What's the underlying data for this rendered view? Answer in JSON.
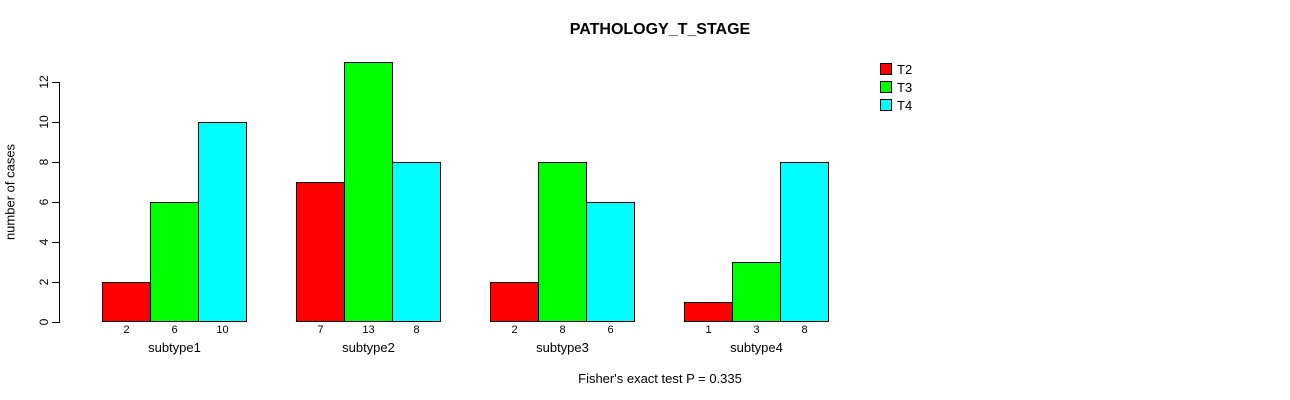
{
  "title": "PATHOLOGY_T_STAGE",
  "footer": "Fisher's exact test P = 0.335",
  "chart_data": {
    "type": "bar",
    "title": "PATHOLOGY_T_STAGE",
    "categories": [
      "subtype1",
      "subtype2",
      "subtype3",
      "subtype4"
    ],
    "series": [
      {
        "name": "T2",
        "color": "#ff0000",
        "values": [
          2,
          7,
          2,
          1
        ]
      },
      {
        "name": "T3",
        "color": "#00ff00",
        "values": [
          6,
          13,
          8,
          3
        ]
      },
      {
        "name": "T4",
        "color": "#00ffff",
        "values": [
          10,
          8,
          6,
          8
        ]
      }
    ],
    "xlabel": "",
    "ylabel": "number of cases",
    "ylim": [
      0,
      13
    ],
    "yticks": [
      0,
      2,
      4,
      6,
      8,
      10,
      12
    ],
    "bar_value_labels": true,
    "legend_position": "right",
    "grid": false,
    "annotation": "Fisher's exact test P = 0.335"
  }
}
